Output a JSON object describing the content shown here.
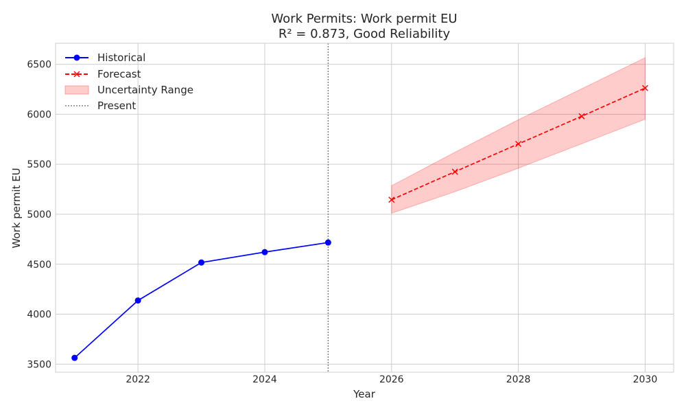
{
  "chart_data": {
    "type": "line",
    "title": "Work Permits: Work permit EU",
    "subtitle": "R² = 0.873, Good Reliability",
    "xlabel": "Year",
    "ylabel": "Work permit EU",
    "xlim": [
      2020.7,
      2030.45
    ],
    "ylim": [
      3420,
      6710
    ],
    "xticks": [
      2022,
      2024,
      2026,
      2028,
      2030
    ],
    "yticks": [
      3500,
      4000,
      4500,
      5000,
      5500,
      6000,
      6500
    ],
    "grid": true,
    "legend_position": "top-left",
    "present_x": 2025,
    "series": [
      {
        "name": "Historical",
        "color": "#0000ff",
        "marker": "circle",
        "linestyle": "solid",
        "x": [
          2021,
          2022,
          2023,
          2024,
          2025
        ],
        "y": [
          3563,
          4137,
          4517,
          4621,
          4717
        ]
      },
      {
        "name": "Forecast",
        "color": "#ff0000",
        "marker": "x",
        "linestyle": "dashed",
        "x": [
          2026,
          2027,
          2028,
          2029,
          2030
        ],
        "y": [
          5145,
          5425,
          5703,
          5980,
          6262
        ]
      }
    ],
    "uncertainty": {
      "name": "Uncertainty Range",
      "color": "#ff0000",
      "x": [
        2026,
        2027,
        2028,
        2029,
        2030
      ],
      "lower": [
        5010,
        5225,
        5460,
        5705,
        5950
      ],
      "upper": [
        5285,
        5620,
        5945,
        6255,
        6565
      ]
    },
    "present_line": {
      "name": "Present",
      "color": "#808080"
    }
  }
}
